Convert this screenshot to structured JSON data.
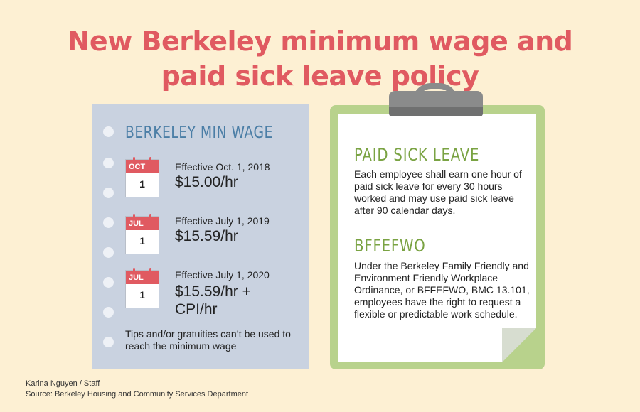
{
  "title_line1": "New Berkeley minimum wage and",
  "title_line2": "paid sick leave policy",
  "min_wage": {
    "heading": "BERKELEY MIN WAGE",
    "entries": [
      {
        "month": "OCT",
        "day": "1",
        "effective": "Effective Oct. 1, 2018",
        "amount": "$15.00/hr"
      },
      {
        "month": "JUL",
        "day": "1",
        "effective": "Effective July 1, 2019",
        "amount": "$15.59/hr"
      },
      {
        "month": "JUL",
        "day": "1",
        "effective": "Effective July 1, 2020",
        "amount_line1": "$15.59/hr +",
        "amount_line2": "CPI/hr"
      }
    ],
    "note": "Tips and/or gratuities can’t be used to reach the minimum wage"
  },
  "paid_sick_leave": {
    "heading": "PAID SICK LEAVE",
    "body": "Each employee shall earn one hour of paid sick leave for every 30 hours worked and may use paid sick leave after 90 calendar days."
  },
  "bffefwo": {
    "heading": "BFFEFWO",
    "body": "Under the Berkeley Family Friendly and Environment Friendly Workplace Ordinance, or BFFEFWO, BMC 13.101, employees have the right to request a flexible or predictable work schedule."
  },
  "credit": "Karina Nguyen / Staff",
  "source": "Source: Berkeley Housing and Community Services Department",
  "colors": {
    "background": "#fdf0d3",
    "title": "#e05a61",
    "notepad": "#c9d2e0",
    "min_wage_heading": "#4b7ea6",
    "clipboard": "#b8d28c",
    "clipboard_heading": "#7aa343",
    "calendar_red": "#e05a61"
  },
  "icons": [
    "calendar-icon",
    "clipboard-clip-icon",
    "notepad-hole-icon"
  ]
}
